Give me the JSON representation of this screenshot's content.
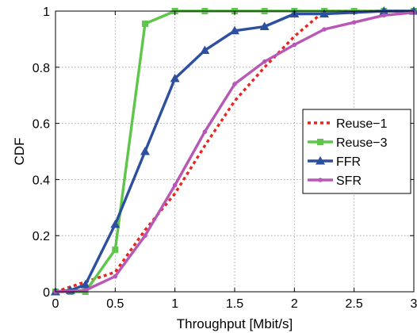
{
  "chart_data": {
    "type": "line",
    "title": "",
    "xlabel": "Throughput [Mbit/s]",
    "ylabel": "CDF",
    "xlim": [
      0,
      3
    ],
    "ylim": [
      0,
      1
    ],
    "x_ticks": [
      "0",
      "0.5",
      "1",
      "1.5",
      "2",
      "2.5",
      "3"
    ],
    "y_ticks": [
      "0",
      "0.2",
      "0.4",
      "0.6",
      "0.8",
      "1"
    ],
    "grid": true,
    "legend_position": "right",
    "series": [
      {
        "name": "Reuse−1",
        "color": "#e8261f",
        "style": "dotted",
        "marker": "none",
        "x": [
          0,
          0.5,
          0.75,
          1.0,
          1.25,
          1.5,
          1.75,
          2.0,
          2.25,
          2.5,
          2.75,
          3.0
        ],
        "y": [
          0,
          0.07,
          0.22,
          0.35,
          0.52,
          0.68,
          0.8,
          0.91,
          1.0,
          1.0,
          1.0,
          1.0
        ]
      },
      {
        "name": "Reuse−3",
        "color": "#5ec64a",
        "style": "solid",
        "marker": "square",
        "x": [
          0,
          0.125,
          0.25,
          0.5,
          0.75,
          1.0,
          1.25,
          1.5,
          1.75,
          2.0,
          2.25,
          2.5,
          2.75,
          3.0
        ],
        "y": [
          0,
          0,
          0,
          0.15,
          0.955,
          1.0,
          1.0,
          1.0,
          1.0,
          1.0,
          1.0,
          1.0,
          1.0,
          1.0
        ]
      },
      {
        "name": "FFR",
        "color": "#2c4f9e",
        "style": "solid",
        "marker": "triangle",
        "x": [
          0,
          0.125,
          0.25,
          0.5,
          0.75,
          1.0,
          1.25,
          1.5,
          1.75,
          2.0,
          2.25,
          2.75,
          3.0
        ],
        "y": [
          0,
          0.005,
          0.025,
          0.24,
          0.5,
          0.76,
          0.86,
          0.93,
          0.945,
          0.99,
          0.99,
          1.0,
          1.0
        ]
      },
      {
        "name": "SFR",
        "color": "#b858b6",
        "style": "solid",
        "marker": "dot",
        "x": [
          0,
          0.25,
          0.5,
          0.75,
          1.0,
          1.25,
          1.5,
          1.75,
          2.0,
          2.25,
          2.5,
          2.75,
          3.0
        ],
        "y": [
          0,
          0.005,
          0.055,
          0.2,
          0.38,
          0.57,
          0.74,
          0.82,
          0.88,
          0.935,
          0.96,
          0.985,
          0.995
        ]
      }
    ]
  }
}
